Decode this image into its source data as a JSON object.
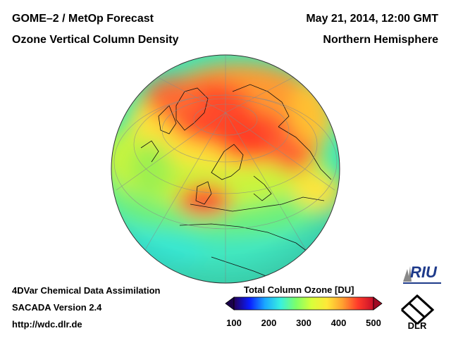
{
  "header": {
    "title_left_1": "GOME–2 / MetOp Forecast",
    "title_left_2": "Ozone Vertical Column Density",
    "title_right_1": "May 21, 2014, 12:00 GMT",
    "title_right_2": "Northern Hemisphere"
  },
  "footer": {
    "line1": "4DVar Chemical Data Assimilation",
    "line2": "SACADA Version 2.4",
    "line3": "http://wdc.dlr.de"
  },
  "colorbar": {
    "title": "Total Column Ozone [DU]",
    "min": 100,
    "max": 500,
    "ticks": [
      "100",
      "200",
      "300",
      "400",
      "500"
    ],
    "colors": [
      "#24005a",
      "#0a1cff",
      "#1aa8ff",
      "#38f0e0",
      "#7cff6a",
      "#d8ff3a",
      "#ffe838",
      "#ffa030",
      "#ff3a2a",
      "#c8102a"
    ]
  },
  "logos": {
    "riu": "RIU",
    "dlr": "DLR"
  },
  "map": {
    "projection": "orthographic",
    "hemisphere": "Northern Hemisphere",
    "variable": "Total Column Ozone",
    "units": "DU"
  }
}
